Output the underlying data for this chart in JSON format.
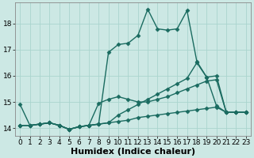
{
  "title": "",
  "xlabel": "Humidex (Indice chaleur)",
  "bg_color": "#cce8e4",
  "grid_color": "#aad4ce",
  "line_color": "#1a6b60",
  "xlim": [
    -0.5,
    23.5
  ],
  "ylim": [
    13.7,
    18.8
  ],
  "yticks": [
    14,
    15,
    16,
    17,
    18
  ],
  "xticks": [
    0,
    1,
    2,
    3,
    4,
    5,
    6,
    7,
    8,
    9,
    10,
    11,
    12,
    13,
    14,
    15,
    16,
    17,
    18,
    19,
    20,
    21,
    22,
    23
  ],
  "series": [
    {
      "x": [
        0,
        1,
        2,
        3,
        4,
        5,
        6,
        7,
        8,
        9,
        10,
        11,
        12,
        13,
        14,
        15,
        16,
        17,
        18,
        19,
        20,
        21,
        22,
        23
      ],
      "y": [
        14.9,
        14.1,
        14.15,
        14.2,
        14.1,
        13.95,
        14.05,
        14.1,
        14.15,
        16.9,
        17.2,
        17.25,
        17.55,
        18.55,
        17.8,
        17.75,
        17.8,
        18.5,
        16.55,
        15.95,
        14.85,
        14.6,
        14.6,
        14.6
      ]
    },
    {
      "x": [
        0,
        1,
        2,
        3,
        4,
        5,
        6,
        7,
        8,
        9,
        10,
        11,
        12,
        13,
        14,
        15,
        16,
        17,
        18,
        19,
        20,
        21,
        22,
        23
      ],
      "y": [
        14.1,
        14.1,
        14.15,
        14.2,
        14.1,
        13.95,
        14.05,
        14.1,
        14.15,
        14.2,
        14.5,
        14.7,
        14.9,
        15.1,
        15.3,
        15.5,
        15.7,
        15.9,
        16.5,
        15.95,
        16.0,
        14.6,
        14.6,
        14.6
      ]
    },
    {
      "x": [
        0,
        1,
        2,
        3,
        4,
        5,
        6,
        7,
        8,
        9,
        10,
        11,
        12,
        13,
        14,
        15,
        16,
        17,
        18,
        19,
        20,
        21,
        22,
        23
      ],
      "y": [
        14.1,
        14.1,
        14.15,
        14.2,
        14.1,
        13.95,
        14.05,
        14.1,
        14.95,
        15.1,
        15.2,
        15.1,
        15.0,
        15.0,
        15.1,
        15.2,
        15.35,
        15.5,
        15.65,
        15.8,
        15.85,
        14.6,
        14.6,
        14.6
      ]
    },
    {
      "x": [
        0,
        1,
        2,
        3,
        4,
        5,
        6,
        7,
        8,
        9,
        10,
        11,
        12,
        13,
        14,
        15,
        16,
        17,
        18,
        19,
        20,
        21,
        22,
        23
      ],
      "y": [
        14.1,
        14.1,
        14.15,
        14.2,
        14.1,
        13.95,
        14.05,
        14.1,
        14.15,
        14.2,
        14.25,
        14.3,
        14.4,
        14.45,
        14.5,
        14.55,
        14.6,
        14.65,
        14.7,
        14.75,
        14.8,
        14.6,
        14.6,
        14.6
      ]
    }
  ],
  "marker": "D",
  "markersize": 2.5,
  "linewidth": 1.0,
  "xlabel_fontsize": 8,
  "tick_fontsize": 6.5
}
